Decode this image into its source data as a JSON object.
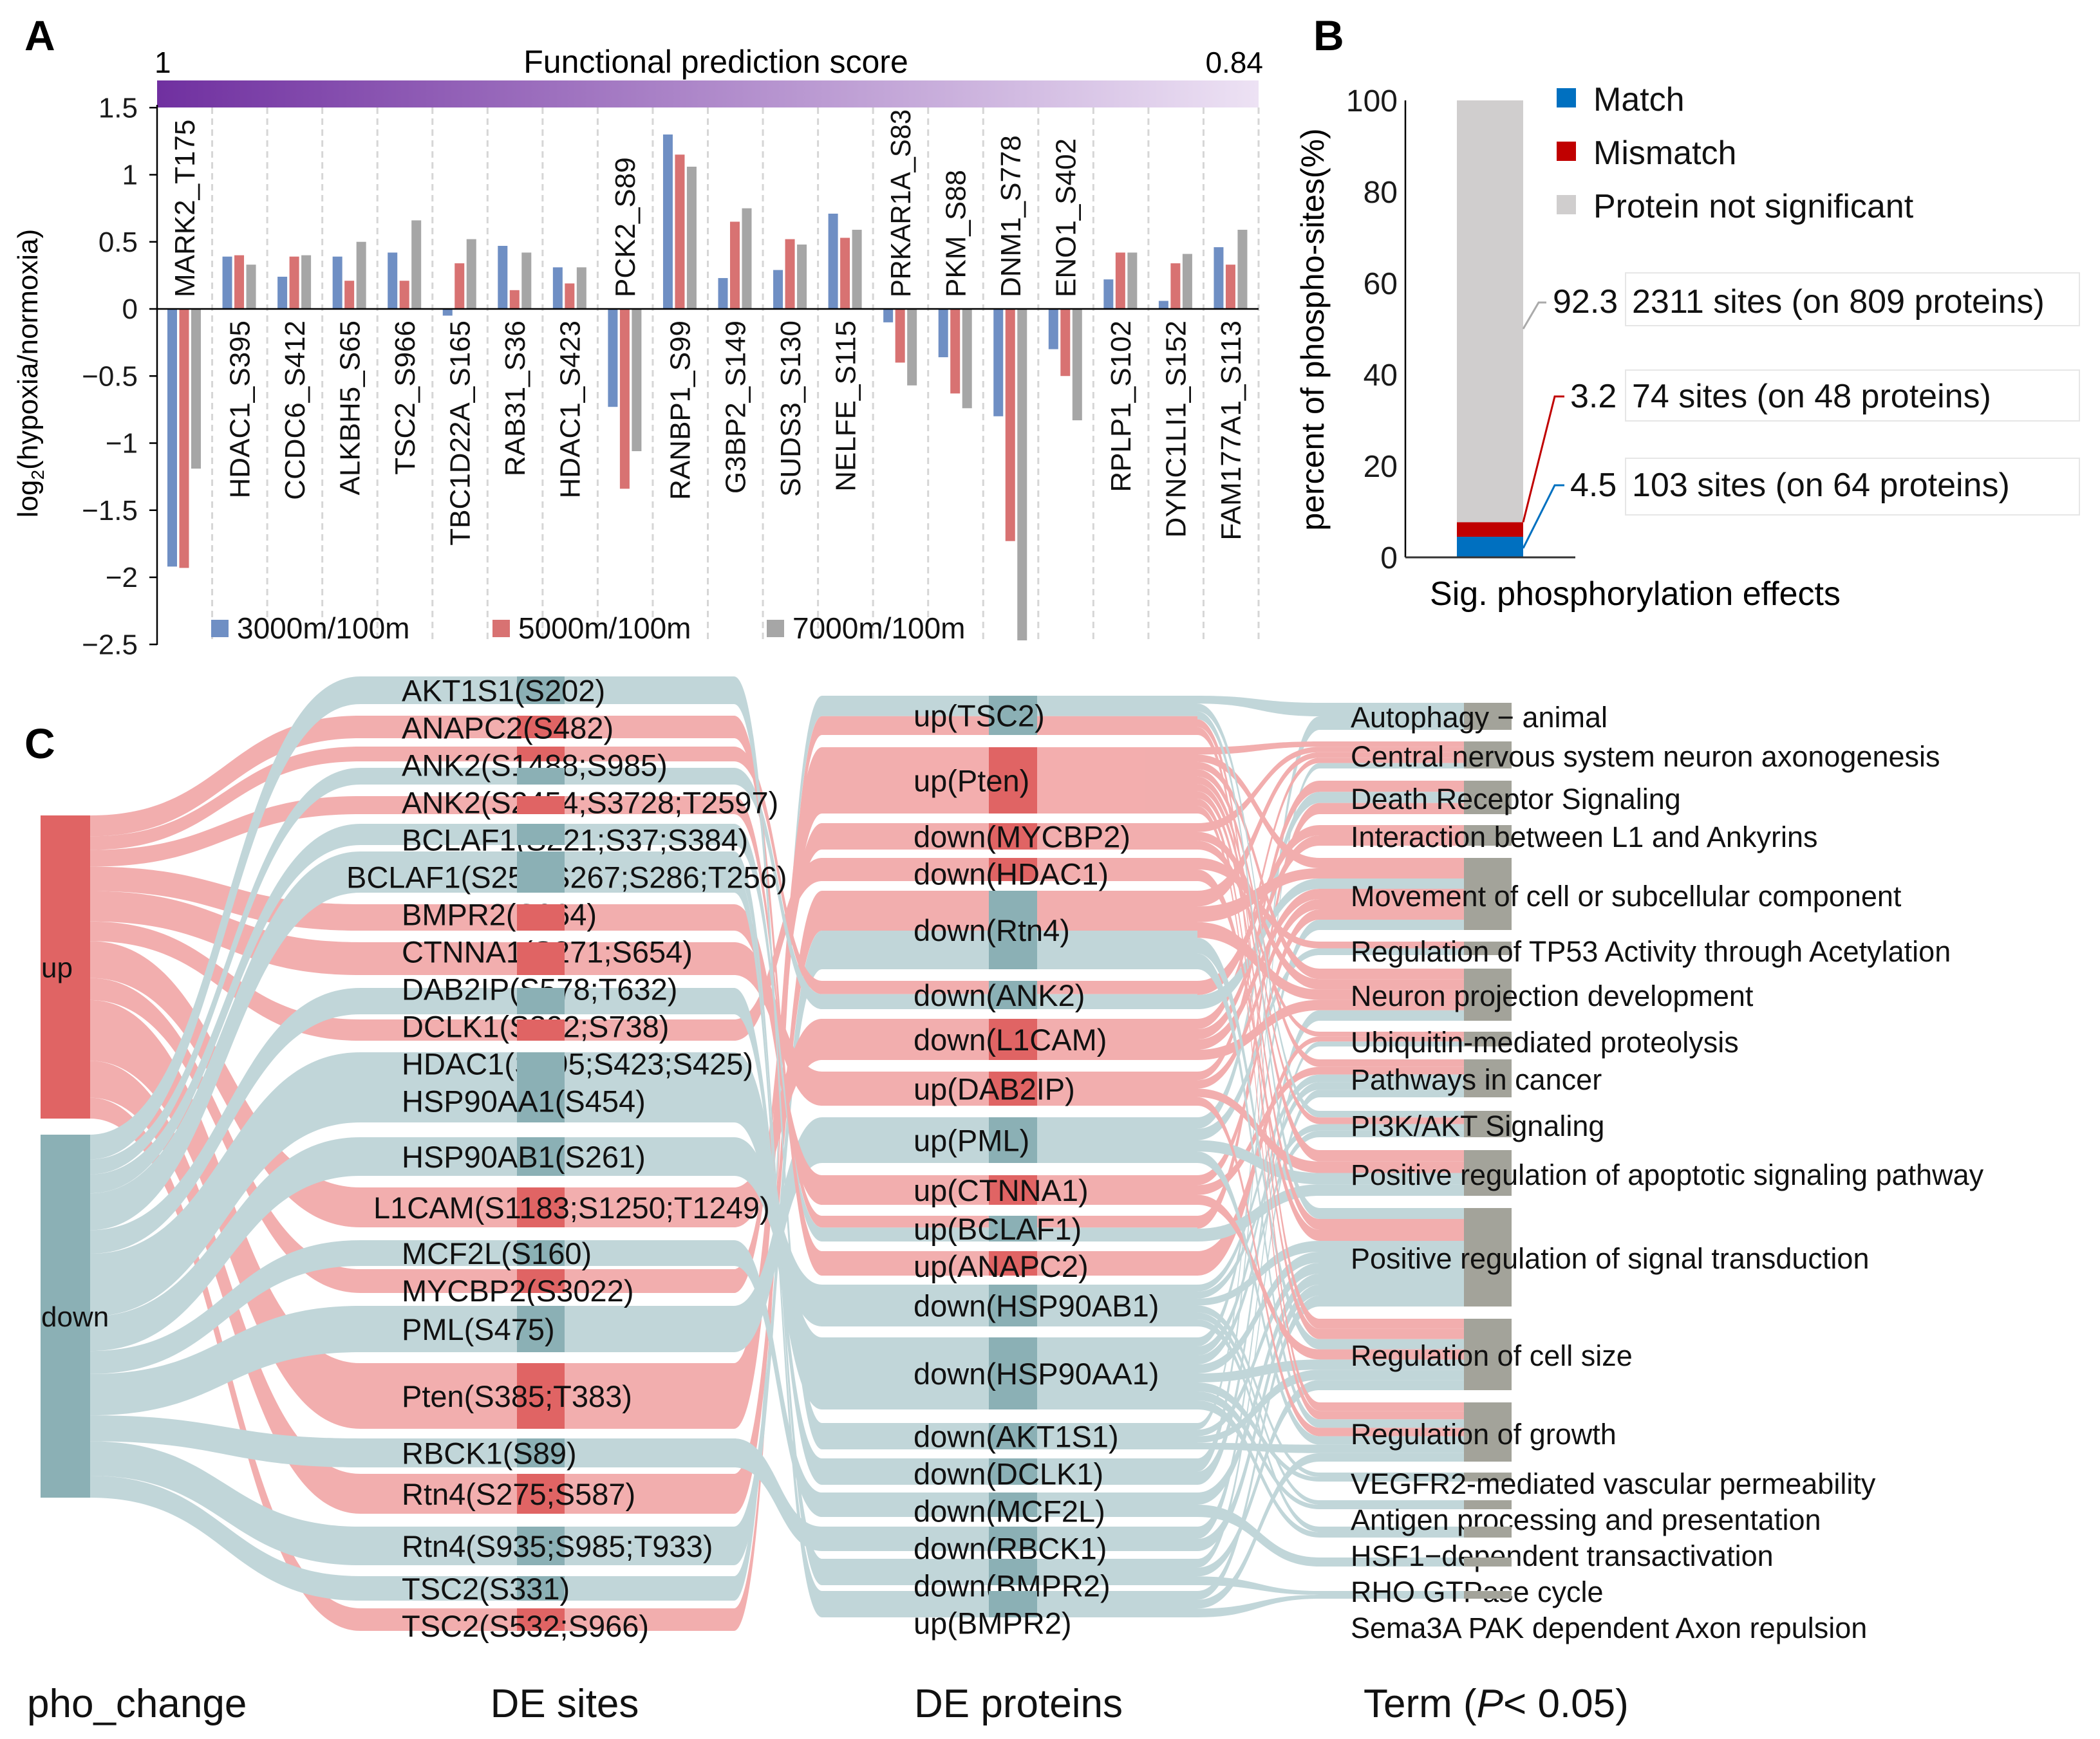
{
  "panel_labels": {
    "a": "A",
    "b": "B",
    "c": "C"
  },
  "chart_data": [
    {
      "type": "bar",
      "panel": "A",
      "title": "Functional prediction score",
      "colorbar": {
        "min_label": "1",
        "max_label": "0.84",
        "colors": [
          "#7030a0",
          "#ede2f4"
        ]
      },
      "ylabel": {
        "main": "log",
        "sub": "2",
        "rest": "(hypoxia/normoxia)"
      },
      "ylim": [
        -2.5,
        1.5
      ],
      "yticks": [
        1.5,
        1,
        0.5,
        0,
        -0.5,
        -1,
        -1.5,
        -2,
        -2.5
      ],
      "ytick_labels": [
        "1.5",
        "1",
        "0.5",
        "0",
        "−0.5",
        "−1",
        "−1.5",
        "−2",
        "−2.5"
      ],
      "grid": false,
      "legend_position": "bottom",
      "categories": [
        "MARK2_T175",
        "HDAC1_S395",
        "CCDC6_S412",
        "ALKBH5_S65",
        "TSC2_S966",
        "TBC1D22A_S165",
        "RAB31_S36",
        "HDAC1_S423",
        "PCK2_S89",
        "RANBP1_S99",
        "G3BP2_S149",
        "SUDS3_S130",
        "NELFE_S115",
        "PRKAR1A_S83",
        "PKM_S88",
        "DNM1_S778",
        "ENO1_S402",
        "RPLP1_S102",
        "DYNC1LI1_S152",
        "FAM177A1_S113"
      ],
      "series": [
        {
          "name": "3000m/100m",
          "color": "#6f8fc4",
          "values": [
            -1.92,
            0.39,
            0.24,
            0.39,
            0.42,
            -0.05,
            0.47,
            0.31,
            -0.73,
            1.3,
            0.23,
            0.29,
            0.71,
            -0.1,
            -0.36,
            -0.8,
            -0.3,
            0.22,
            0.06,
            0.46
          ]
        },
        {
          "name": "5000m/100m",
          "color": "#d87272",
          "values": [
            -1.93,
            0.4,
            0.39,
            0.21,
            0.21,
            0.34,
            0.14,
            0.19,
            -1.34,
            1.15,
            0.65,
            0.52,
            0.53,
            -0.4,
            -0.63,
            -1.73,
            -0.5,
            0.42,
            0.34,
            0.33
          ]
        },
        {
          "name": "7000m/100m",
          "color": "#a6a6a6",
          "values": [
            -1.19,
            0.33,
            0.4,
            0.5,
            0.66,
            0.52,
            0.42,
            0.31,
            -1.06,
            1.06,
            0.75,
            0.48,
            0.59,
            -0.57,
            -0.74,
            -2.47,
            -0.83,
            0.42,
            0.41,
            0.59
          ]
        }
      ]
    },
    {
      "type": "bar",
      "panel": "B",
      "stacked": true,
      "ylabel": "percent of  phospho-sites(%)",
      "xlabel": "Sig. phosphorylation effects",
      "ylim": [
        0,
        100
      ],
      "yticks": [
        0,
        20,
        40,
        60,
        80,
        100
      ],
      "ytick_labels": [
        "0",
        "20",
        "40",
        "60",
        "80",
        "100"
      ],
      "legend_position": "top-right",
      "series": [
        {
          "name": "Match",
          "color": "#0070c0",
          "value": 4.5,
          "value_label": "4.5",
          "annotation": "103 sites (on 64 proteins)"
        },
        {
          "name": "Mismatch",
          "color": "#c00000",
          "value": 3.2,
          "value_label": "3.2",
          "annotation": "74 sites (on 48 proteins)"
        },
        {
          "name": "Protein not significant",
          "color": "#d0cece",
          "value": 92.3,
          "value_label": "92.3",
          "annotation": "2311 sites (on 809 proteins)"
        }
      ]
    },
    {
      "type": "sankey",
      "panel": "C",
      "colors": {
        "up_node": "#e06464",
        "up_link": "#f1a3a3",
        "down_node": "#8bb0b5",
        "down_link": "#b9d1d4",
        "term_node": "#a3a39a"
      },
      "column_titles": {
        "pho_change": "pho_change",
        "sites": "DE sites",
        "proteins": "DE proteins",
        "term_prefix": "Term (",
        "term_italic": "P",
        "term_suffix": "< 0.05)"
      },
      "pho_change": [
        {
          "label": "up",
          "tone": "up"
        },
        {
          "label": "down",
          "tone": "down"
        }
      ],
      "sites": [
        {
          "label": "AKT1S1(S202)",
          "from": "down",
          "to": [
            "down(AKT1S1)"
          ]
        },
        {
          "label": "ANAPC2(S482)",
          "from": "up",
          "to": [
            "up(ANAPC2)"
          ]
        },
        {
          "label": "ANK2(S1488;S985)",
          "from": "up",
          "to": [
            "down(ANK2)"
          ]
        },
        {
          "label": "ANK2(S2454;S3728;T2597)",
          "from": "down",
          "to": [
            "down(ANK2)"
          ]
        },
        {
          "label": "BCLAF1(S221;S37;S384)",
          "from": "up",
          "to": [
            "up(BCLAF1)"
          ]
        },
        {
          "label": "BCLAF1(S258;S267;S286;T256)",
          "from": "down",
          "to": [
            "up(BCLAF1)"
          ]
        },
        {
          "label": "BMPR2(S864)",
          "from": "down",
          "to": [
            "down(BMPR2)",
            "up(BMPR2)"
          ]
        },
        {
          "label": "CTNNA1(S271;S654)",
          "from": "up",
          "to": [
            "up(CTNNA1)"
          ]
        },
        {
          "label": "DAB2IP(S578;T632)",
          "from": "up",
          "to": [
            "up(DAB2IP)"
          ]
        },
        {
          "label": "DCLK1(S392;S738)",
          "from": "down",
          "to": [
            "down(DCLK1)"
          ]
        },
        {
          "label": "HDAC1(S395;S423;S425)",
          "from": "up",
          "to": [
            "down(HDAC1)"
          ]
        },
        {
          "label": "HSP90AA1(S454)",
          "from": "down",
          "to": [
            "down(HSP90AA1)"
          ]
        },
        {
          "label": "HSP90AB1(S261)",
          "from": "down",
          "to": [
            "down(HSP90AB1)"
          ]
        },
        {
          "label": "L1CAM(S1183;S1250;T1249)",
          "from": "up",
          "to": [
            "down(L1CAM)"
          ]
        },
        {
          "label": "MCF2L(S160)",
          "from": "down",
          "to": [
            "down(MCF2L)"
          ]
        },
        {
          "label": "MYCBP2(S3022)",
          "from": "up",
          "to": [
            "down(MYCBP2)"
          ]
        },
        {
          "label": "PML(S475)",
          "from": "down",
          "to": [
            "up(PML)"
          ]
        },
        {
          "label": "Pten(S385;T383)",
          "from": "up",
          "to": [
            "up(Pten)"
          ]
        },
        {
          "label": "RBCK1(S89)",
          "from": "down",
          "to": [
            "down(RBCK1)"
          ]
        },
        {
          "label": "Rtn4(S275;S587)",
          "from": "up",
          "to": [
            "down(Rtn4)"
          ]
        },
        {
          "label": "Rtn4(S935;S985;T933)",
          "from": "down",
          "to": [
            "down(Rtn4)"
          ]
        },
        {
          "label": "TSC2(S331)",
          "from": "down",
          "to": [
            "up(TSC2)"
          ]
        },
        {
          "label": "TSC2(S532;S966)",
          "from": "up",
          "to": [
            "up(TSC2)"
          ]
        }
      ],
      "proteins": [
        {
          "label": "up(TSC2)",
          "tone": "down",
          "terms": [
            "Autophagy − animal",
            "PI3K/AKT Signaling",
            "Positive regulation of signal transduction",
            "Regulation of cell size",
            "Regulation of growth"
          ]
        },
        {
          "label": "up(Pten)",
          "tone": "up",
          "terms": [
            "Central nervous system neuron axonogenesis",
            "Movement of cell or subcellular component",
            "Neuron projection development",
            "Pathways in cancer",
            "PI3K/AKT Signaling",
            "Positive regulation of apoptotic signaling pathway",
            "Positive regulation of signal transduction",
            "Regulation of cell size",
            "Regulation of growth"
          ]
        },
        {
          "label": "down(MYCBP2)",
          "tone": "up",
          "terms": [
            "Central nervous system neuron axonogenesis",
            "Neuron projection development",
            "Ubiquitin-mediated proteolysis"
          ]
        },
        {
          "label": "down(HDAC1)",
          "tone": "up",
          "terms": [
            "Regulation of TP53 Activity through Acetylation",
            "Positive regulation of signal transduction"
          ]
        },
        {
          "label": "down(Rtn4)",
          "tone": "down",
          "terms": [
            "Central nervous system neuron axonogenesis",
            "Movement of cell or subcellular component",
            "Neuron projection development",
            "Regulation of cell size",
            "Regulation of growth"
          ]
        },
        {
          "label": "down(ANK2)",
          "tone": "down",
          "terms": [
            "Interaction between L1 and Ankyrins",
            "Movement of cell or subcellular component"
          ]
        },
        {
          "label": "down(L1CAM)",
          "tone": "up",
          "terms": [
            "Central nervous system neuron axonogenesis",
            "Interaction between L1 and Ankyrins",
            "Movement of cell or subcellular component",
            "Neuron projection development"
          ]
        },
        {
          "label": "up(DAB2IP)",
          "tone": "up",
          "terms": [
            "Death Receptor Signaling",
            "Movement of cell or subcellular component",
            "Positive regulation of apoptotic signaling pathway",
            "Regulation of growth"
          ]
        },
        {
          "label": "up(PML)",
          "tone": "down",
          "terms": [
            "Death Receptor Signaling",
            "Regulation of TP53 Activity through Acetylation",
            "Positive regulation of apoptotic signaling pathway",
            "Regulation of growth"
          ]
        },
        {
          "label": "up(CTNNA1)",
          "tone": "up",
          "terms": [
            "Movement of cell or subcellular component",
            "Pathways in cancer",
            "Regulation of cell size"
          ]
        },
        {
          "label": "up(BCLAF1)",
          "tone": "down",
          "terms": [
            "Death Receptor Signaling",
            "Positive regulation of apoptotic signaling pathway"
          ]
        },
        {
          "label": "up(ANAPC2)",
          "tone": "up",
          "terms": [
            "Ubiquitin-mediated proteolysis"
          ]
        },
        {
          "label": "down(HSP90AB1)",
          "tone": "down",
          "terms": [
            "Pathways in cancer",
            "PI3K/AKT Signaling",
            "Positive regulation of signal transduction",
            "VEGFR2-mediated vascular permeability",
            "Antigen processing and presentation",
            "HSF1−dependent transactivation"
          ]
        },
        {
          "label": "down(HSP90AA1)",
          "tone": "down",
          "terms": [
            "Movement of cell or subcellular component",
            "Pathways in cancer",
            "PI3K/AKT Signaling",
            "Positive regulation of signal transduction",
            "Regulation of cell size",
            "VEGFR2-mediated vascular permeability",
            "Antigen processing and presentation",
            "HSF1−dependent transactivation"
          ]
        },
        {
          "label": "down(AKT1S1)",
          "tone": "down",
          "terms": [
            "Autophagy − animal",
            "Positive regulation of signal transduction",
            "Regulation of cell size",
            "Regulation of growth"
          ]
        },
        {
          "label": "down(DCLK1)",
          "tone": "down",
          "terms": [
            "Central nervous system neuron axonogenesis",
            "Neuron projection development"
          ]
        },
        {
          "label": "down(MCF2L)",
          "tone": "down",
          "terms": [
            "Positive regulation of signal transduction",
            "RHO GTPase cycle"
          ]
        },
        {
          "label": "down(RBCK1)",
          "tone": "down",
          "terms": [
            "Ubiquitin-mediated proteolysis",
            "Positive regulation of signal transduction"
          ]
        },
        {
          "label": "down(BMPR2)",
          "tone": "down",
          "terms": [
            "Pathways in cancer",
            "Regulation of cell size",
            "Sema3A PAK dependent Axon repulsion"
          ]
        },
        {
          "label": "up(BMPR2)",
          "tone": "down",
          "terms": [
            "Positive regulation of signal transduction",
            "Regulation of growth",
            "Sema3A PAK dependent Axon repulsion"
          ]
        }
      ],
      "terms": [
        {
          "label": "Autophagy − animal"
        },
        {
          "label": "Central nervous system neuron axonogenesis"
        },
        {
          "label": "Death Receptor Signaling"
        },
        {
          "label": "Interaction between L1 and Ankyrins"
        },
        {
          "label": "Movement of cell or subcellular component"
        },
        {
          "label": "Regulation of TP53 Activity through Acetylation"
        },
        {
          "label": "Neuron projection development"
        },
        {
          "label": "Ubiquitin-mediated proteolysis"
        },
        {
          "label": "Pathways in cancer"
        },
        {
          "label": "PI3K/AKT Signaling"
        },
        {
          "label": "Positive regulation of apoptotic signaling pathway"
        },
        {
          "label": "Positive regulation of signal transduction"
        },
        {
          "label": "Regulation of cell size"
        },
        {
          "label": "Regulation of growth"
        },
        {
          "label": "VEGFR2-mediated vascular permeability"
        },
        {
          "label": "Antigen processing and presentation"
        },
        {
          "label": "HSF1−dependent transactivation"
        },
        {
          "label": "RHO GTPase cycle"
        },
        {
          "label": "Sema3A PAK dependent Axon repulsion"
        }
      ]
    }
  ]
}
